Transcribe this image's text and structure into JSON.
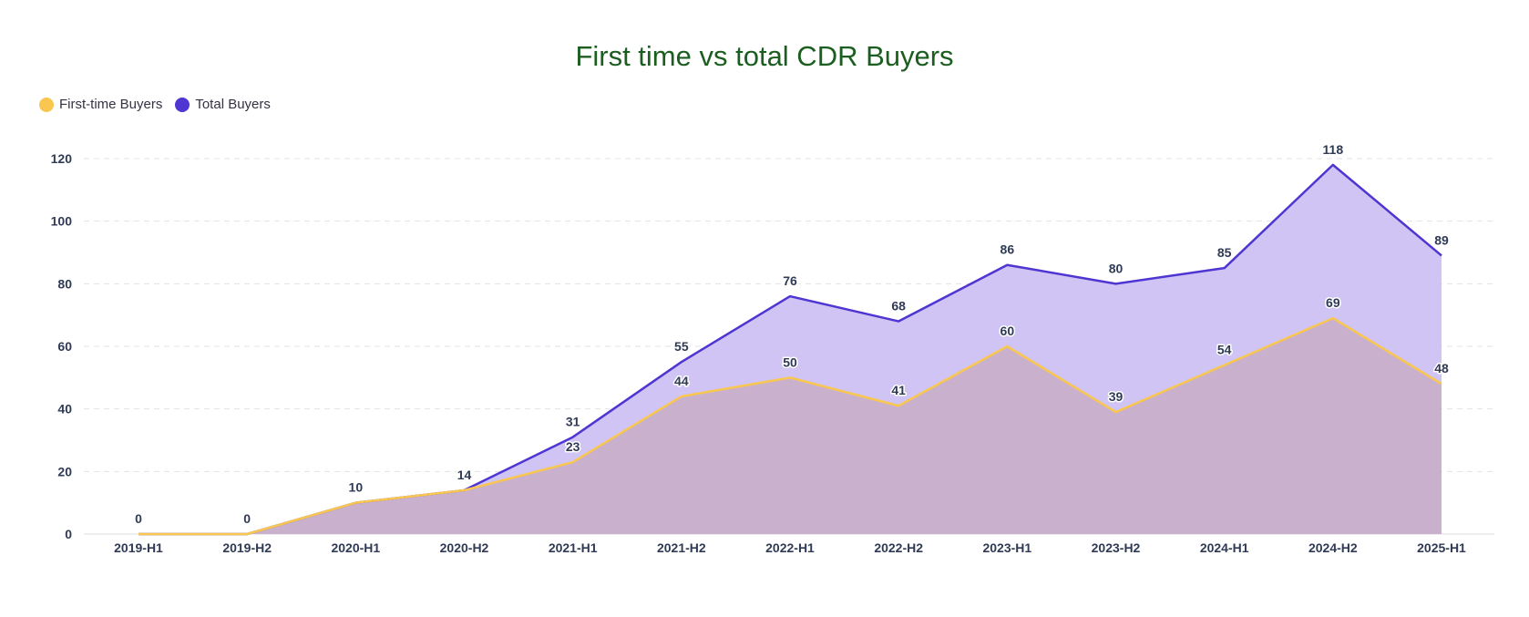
{
  "chart_data": {
    "type": "area",
    "title": "First time vs total CDR Buyers",
    "xlabel": "",
    "ylabel": "",
    "categories": [
      "2019-H1",
      "2019-H2",
      "2020-H1",
      "2020-H2",
      "2021-H1",
      "2021-H2",
      "2022-H1",
      "2022-H2",
      "2023-H1",
      "2023-H2",
      "2024-H1",
      "2024-H2",
      "2025-H1"
    ],
    "ylim": [
      0,
      120
    ],
    "yticks": [
      0,
      20,
      40,
      60,
      80,
      100,
      120
    ],
    "grid": true,
    "legend_position": "top-left",
    "series": [
      {
        "name": "First-time Buyers",
        "color": "#f9c74f",
        "fill": "#c9b1cd",
        "values": [
          0,
          0,
          10,
          14,
          23,
          44,
          50,
          41,
          60,
          39,
          54,
          69,
          48
        ],
        "labels_shown": [
          false,
          false,
          false,
          false,
          true,
          true,
          true,
          true,
          true,
          true,
          true,
          true,
          true
        ]
      },
      {
        "name": "Total Buyers",
        "color": "#4f35d2",
        "fill": "#cfc4f3",
        "values": [
          0,
          0,
          10,
          14,
          31,
          55,
          76,
          68,
          86,
          80,
          85,
          118,
          89
        ],
        "labels_shown": [
          true,
          true,
          true,
          true,
          true,
          true,
          true,
          true,
          true,
          true,
          true,
          true,
          true
        ]
      }
    ]
  }
}
